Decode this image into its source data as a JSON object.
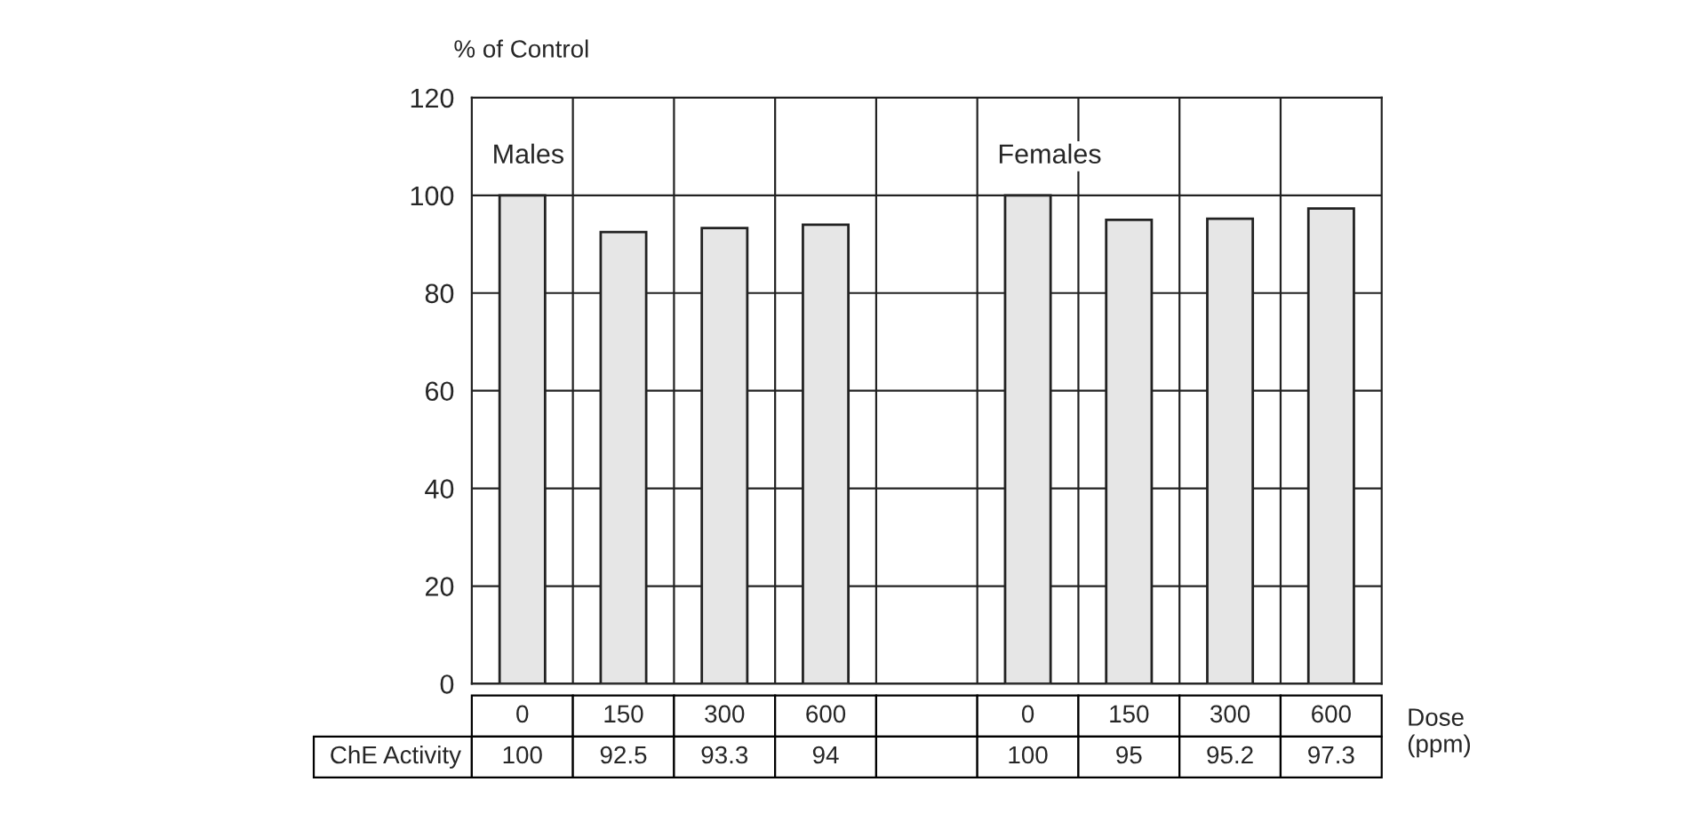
{
  "chart_data": {
    "type": "bar",
    "ylabel": "% of Control",
    "xlabel": "Dose (ppm)",
    "categories": [
      "0",
      "150",
      "300",
      "600",
      null,
      "0",
      "150",
      "300",
      "600"
    ],
    "values": [
      100,
      92.5,
      93.3,
      94,
      null,
      100,
      95,
      95.2,
      97.3
    ],
    "color": "#e6e6e6",
    "data_labels": true,
    "ylim": [
      0,
      120
    ],
    "yticks": [
      0,
      20,
      40,
      60,
      80,
      100,
      120
    ],
    "grid": true,
    "annotations": [
      "Males",
      "Females",
      "ChE Activity"
    ]
  }
}
